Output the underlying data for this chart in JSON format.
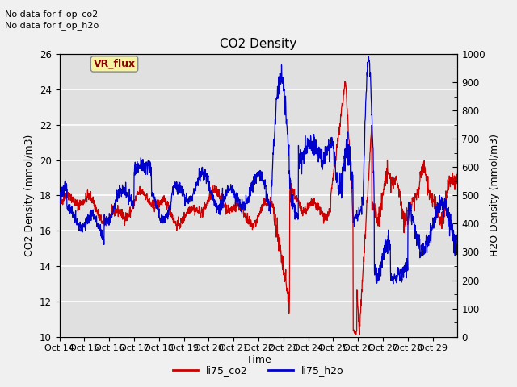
{
  "title": "CO2 Density",
  "xlabel": "Time",
  "ylabel_left": "CO2 Density (mmol/m3)",
  "ylabel_right": "H2O Density (mmol/m3)",
  "xlim": [
    0,
    16
  ],
  "ylim_left": [
    10,
    26
  ],
  "ylim_right": [
    0,
    1000
  ],
  "xtick_labels": [
    "Oct 14",
    "Oct 15",
    "Oct 16",
    "Oct 17",
    "Oct 18",
    "Oct 19",
    "Oct 20",
    "Oct 21",
    "Oct 22",
    "Oct 23",
    "Oct 24",
    "Oct 25",
    "Oct 26",
    "Oct 27",
    "Oct 28",
    "Oct 29"
  ],
  "yticks_left": [
    10,
    12,
    14,
    16,
    18,
    20,
    22,
    24,
    26
  ],
  "yticks_right": [
    0,
    100,
    200,
    300,
    400,
    500,
    600,
    700,
    800,
    900,
    1000
  ],
  "top_annotations": [
    "No data for f_op_co2",
    "No data for f_op_h2o"
  ],
  "vr_flux_label": "VR_flux",
  "legend_labels": [
    "li75_co2",
    "li75_h2o"
  ],
  "co2_color": "#cc0000",
  "h2o_color": "#0000cc",
  "background_color": "#e0e0e0",
  "grid_color": "#ffffff",
  "fig_bg": "#f0f0f0"
}
